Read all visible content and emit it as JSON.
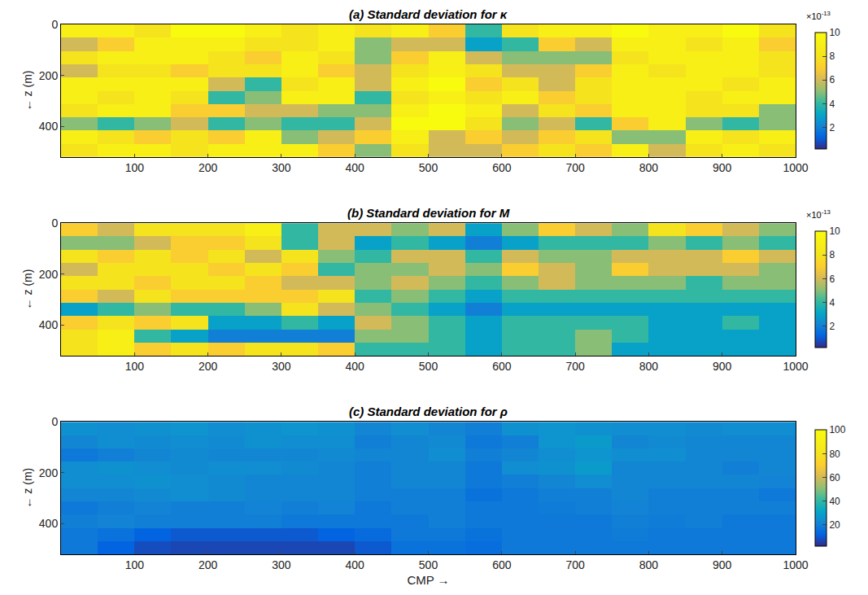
{
  "chart_data": [
    {
      "type": "heatmap",
      "title": "(a) Standard deviation for κ",
      "x": [
        25,
        75,
        125,
        175,
        225,
        275,
        325,
        375,
        425,
        475,
        525,
        575,
        625,
        675,
        725,
        775,
        825,
        875,
        925,
        975
      ],
      "y": [
        26,
        78,
        130,
        182,
        234,
        286,
        338,
        390,
        442,
        494
      ],
      "cells": [
        [
          9e-13,
          9e-13,
          8e-13,
          1e-12,
          1e-12,
          9e-13,
          8e-13,
          9e-13,
          8e-13,
          9e-13,
          7e-13,
          4e-13,
          8e-13,
          9e-13,
          9e-13,
          1e-12,
          9e-13,
          9e-13,
          1e-12,
          8e-13
        ],
        [
          6e-13,
          7e-13,
          9e-13,
          9e-13,
          9e-13,
          8e-13,
          8e-13,
          9e-13,
          5e-13,
          6e-13,
          6e-13,
          3e-13,
          4e-13,
          7e-13,
          6e-13,
          9e-13,
          9e-13,
          8e-13,
          9e-13,
          7e-13
        ],
        [
          8e-13,
          9e-13,
          9e-13,
          9e-13,
          8e-13,
          7e-13,
          9e-13,
          8e-13,
          5e-13,
          7e-13,
          9e-13,
          6e-13,
          5e-13,
          5e-13,
          5e-13,
          8e-13,
          9e-13,
          9e-13,
          9e-13,
          8e-13
        ],
        [
          6e-13,
          8e-13,
          8e-13,
          7e-13,
          8e-13,
          8e-13,
          9e-13,
          7e-13,
          6e-13,
          8e-13,
          9e-13,
          8e-13,
          6e-13,
          6e-13,
          7e-13,
          9e-13,
          8e-13,
          9e-13,
          9e-13,
          8e-13
        ],
        [
          9e-13,
          9e-13,
          9e-13,
          9e-13,
          6e-13,
          4e-13,
          8e-13,
          9e-13,
          6e-13,
          9e-13,
          1e-12,
          7e-13,
          8e-13,
          6e-13,
          8e-13,
          9e-13,
          9e-13,
          9e-13,
          8e-13,
          9e-13
        ],
        [
          9e-13,
          8e-13,
          9e-13,
          8e-13,
          4e-13,
          5e-13,
          9e-13,
          9e-13,
          4e-13,
          8e-13,
          9e-13,
          8e-13,
          9e-13,
          7e-13,
          8e-13,
          9e-13,
          9e-13,
          8e-13,
          9e-13,
          9e-13
        ],
        [
          8e-13,
          9e-13,
          9e-13,
          7e-13,
          7e-13,
          6e-13,
          6e-13,
          5e-13,
          5e-13,
          9e-13,
          1e-12,
          9e-13,
          6e-13,
          8e-13,
          7e-13,
          9e-13,
          9e-13,
          8e-13,
          8e-13,
          5e-13
        ],
        [
          5e-13,
          4e-13,
          5e-13,
          6e-13,
          4e-13,
          5e-13,
          4e-13,
          4e-13,
          6e-13,
          1e-12,
          1e-12,
          8e-13,
          5e-13,
          6e-13,
          4e-13,
          7e-13,
          9e-13,
          5e-13,
          4e-13,
          5e-13
        ],
        [
          9e-13,
          8e-13,
          7e-13,
          8e-13,
          7e-13,
          9e-13,
          5e-13,
          6e-13,
          7e-13,
          9e-13,
          6e-13,
          7e-13,
          6e-13,
          7e-13,
          8e-13,
          5e-13,
          5e-13,
          9e-13,
          8e-13,
          9e-13
        ],
        [
          8e-13,
          9e-13,
          9e-13,
          8e-13,
          9e-13,
          9e-13,
          9e-13,
          7e-13,
          5e-13,
          8e-13,
          6e-13,
          6e-13,
          7e-13,
          8e-13,
          7e-13,
          9e-13,
          6e-13,
          8e-13,
          9e-13,
          8e-13
        ]
      ],
      "xlim": [
        0,
        1000
      ],
      "xticks": [
        100,
        200,
        300,
        400,
        500,
        600,
        700,
        800,
        900,
        1000
      ],
      "ylim": [
        520,
        0
      ],
      "yticks": [
        0,
        200,
        400
      ],
      "ylabel": "← z (m)",
      "colorbar_range": [
        2e-14,
        1e-12
      ],
      "colorbar_ticks": [
        {
          "value": 2e-13,
          "label": "2"
        },
        {
          "value": 4e-13,
          "label": "4"
        },
        {
          "value": 6e-13,
          "label": "6"
        },
        {
          "value": 8e-13,
          "label": "8"
        },
        {
          "value": 1e-12,
          "label": "10"
        }
      ],
      "colorbar_multiplier": {
        "base": "×10",
        "exponent": "-13"
      }
    },
    {
      "type": "heatmap",
      "title": "(b) Standard deviation for M",
      "x": [
        25,
        75,
        125,
        175,
        225,
        275,
        325,
        375,
        425,
        475,
        525,
        575,
        625,
        675,
        725,
        775,
        825,
        875,
        925,
        975
      ],
      "y": [
        26,
        78,
        130,
        182,
        234,
        286,
        338,
        390,
        442,
        494
      ],
      "cells": [
        [
          7e-13,
          6e-13,
          8e-13,
          8e-13,
          8e-13,
          9e-13,
          4e-13,
          6e-13,
          6e-13,
          5e-13,
          6e-13,
          3e-13,
          5e-13,
          7e-13,
          6e-13,
          5e-13,
          8e-13,
          7e-13,
          6e-13,
          5e-13
        ],
        [
          5e-13,
          5e-13,
          6e-13,
          7e-13,
          7e-13,
          8e-13,
          4e-13,
          6e-13,
          3e-13,
          4e-13,
          3e-13,
          2e-13,
          3e-13,
          4e-13,
          4e-13,
          4e-13,
          5e-13,
          4e-13,
          5e-13,
          4e-13
        ],
        [
          8e-13,
          7e-13,
          8e-13,
          7e-13,
          8e-13,
          6e-13,
          8e-13,
          5e-13,
          4e-13,
          6e-13,
          6e-13,
          4e-13,
          6e-13,
          5e-13,
          5e-13,
          6e-13,
          6e-13,
          6e-13,
          7e-13,
          6e-13
        ],
        [
          6e-13,
          8e-13,
          8e-13,
          8e-13,
          7e-13,
          8e-13,
          7e-13,
          4e-13,
          5e-13,
          5e-13,
          6e-13,
          5e-13,
          7e-13,
          6e-13,
          5e-13,
          7e-13,
          6e-13,
          6e-13,
          6e-13,
          5e-13
        ],
        [
          8e-13,
          8e-13,
          7e-13,
          8e-13,
          8e-13,
          7e-13,
          6e-13,
          6e-13,
          5e-13,
          6e-13,
          5e-13,
          4e-13,
          5e-13,
          6e-13,
          5e-13,
          5e-13,
          5e-13,
          4e-13,
          5e-13,
          5e-13
        ],
        [
          7e-13,
          6e-13,
          8e-13,
          7e-13,
          7e-13,
          7e-13,
          7e-13,
          8e-13,
          4e-13,
          5e-13,
          4e-13,
          3e-13,
          4e-13,
          4e-13,
          4e-13,
          4e-13,
          4e-13,
          4e-13,
          4e-13,
          4e-13
        ],
        [
          3e-13,
          4e-13,
          5e-13,
          4e-13,
          4e-13,
          5e-13,
          8e-13,
          6e-13,
          5e-13,
          4e-13,
          3e-13,
          2e-13,
          3e-13,
          3e-13,
          3e-13,
          3e-13,
          3e-13,
          3e-13,
          3e-13,
          3e-13
        ],
        [
          7e-13,
          8e-13,
          7e-13,
          8e-13,
          3e-13,
          3e-13,
          4e-13,
          3e-13,
          6e-13,
          5e-13,
          4e-13,
          3e-13,
          4e-13,
          4e-13,
          4e-13,
          4e-13,
          3e-13,
          3e-13,
          4e-13,
          3e-13
        ],
        [
          8e-13,
          9e-13,
          4e-13,
          3e-13,
          2e-13,
          2e-13,
          2e-13,
          2e-13,
          5e-13,
          5e-13,
          4e-13,
          3e-13,
          4e-13,
          4e-13,
          5e-13,
          4e-13,
          3e-13,
          3e-13,
          3e-13,
          3e-13
        ],
        [
          8e-13,
          9e-13,
          7e-13,
          8e-13,
          7e-13,
          8e-13,
          8e-13,
          7e-13,
          4e-13,
          4e-13,
          4e-13,
          3e-13,
          4e-13,
          4e-13,
          5e-13,
          3e-13,
          3e-13,
          3e-13,
          3e-13,
          3e-13
        ]
      ],
      "xlim": [
        0,
        1000
      ],
      "xticks": [
        100,
        200,
        300,
        400,
        500,
        600,
        700,
        800,
        900,
        1000
      ],
      "ylim": [
        520,
        0
      ],
      "yticks": [
        0,
        200,
        400
      ],
      "ylabel": "← z (m)",
      "colorbar_range": [
        2e-14,
        1e-12
      ],
      "colorbar_ticks": [
        {
          "value": 2e-13,
          "label": "2"
        },
        {
          "value": 4e-13,
          "label": "4"
        },
        {
          "value": 6e-13,
          "label": "6"
        },
        {
          "value": 8e-13,
          "label": "8"
        },
        {
          "value": 1e-12,
          "label": "10"
        }
      ],
      "colorbar_multiplier": {
        "base": "×10",
        "exponent": "-13"
      }
    },
    {
      "type": "heatmap",
      "title": "(c) Standard deviation for ρ",
      "x": [
        25,
        75,
        125,
        175,
        225,
        275,
        325,
        375,
        425,
        475,
        525,
        575,
        625,
        675,
        725,
        775,
        825,
        875,
        925,
        975
      ],
      "y": [
        26,
        78,
        130,
        182,
        234,
        286,
        338,
        390,
        442,
        494
      ],
      "cells": [
        [
          25,
          24,
          25,
          26,
          24,
          25,
          26,
          25,
          22,
          24,
          22,
          20,
          25,
          26,
          25,
          24,
          24,
          23,
          24,
          24
        ],
        [
          22,
          24,
          23,
          24,
          23,
          25,
          24,
          24,
          20,
          22,
          23,
          18,
          20,
          26,
          28,
          22,
          23,
          22,
          22,
          22
        ],
        [
          18,
          20,
          22,
          23,
          22,
          22,
          22,
          23,
          22,
          22,
          24,
          20,
          22,
          24,
          26,
          24,
          24,
          22,
          22,
          22
        ],
        [
          24,
          25,
          24,
          23,
          24,
          24,
          23,
          22,
          20,
          22,
          22,
          18,
          24,
          25,
          28,
          22,
          22,
          22,
          20,
          22
        ],
        [
          24,
          24,
          25,
          24,
          23,
          22,
          22,
          22,
          20,
          22,
          22,
          18,
          20,
          22,
          24,
          22,
          22,
          22,
          22,
          21
        ],
        [
          22,
          22,
          23,
          24,
          23,
          22,
          22,
          22,
          20,
          20,
          20,
          16,
          18,
          20,
          20,
          22,
          20,
          20,
          20,
          18
        ],
        [
          18,
          20,
          21,
          20,
          20,
          21,
          20,
          21,
          18,
          20,
          20,
          18,
          18,
          19,
          20,
          21,
          20,
          20,
          20,
          20
        ],
        [
          20,
          21,
          20,
          20,
          20,
          20,
          18,
          18,
          18,
          18,
          20,
          18,
          18,
          18,
          18,
          20,
          19,
          20,
          18,
          18
        ],
        [
          18,
          16,
          12,
          10,
          10,
          10,
          10,
          12,
          14,
          18,
          18,
          16,
          18,
          18,
          18,
          19,
          18,
          18,
          18,
          18
        ],
        [
          18,
          12,
          8,
          7,
          7,
          7,
          7,
          7,
          10,
          16,
          16,
          15,
          18,
          18,
          18,
          18,
          18,
          18,
          18,
          18
        ]
      ],
      "xlim": [
        0,
        1000
      ],
      "xticks": [
        100,
        200,
        300,
        400,
        500,
        600,
        700,
        800,
        900,
        1000
      ],
      "ylim": [
        520,
        0
      ],
      "yticks": [
        0,
        200,
        400
      ],
      "ylabel": "← z (m)",
      "xlabel": "CMP →",
      "colorbar_range": [
        2,
        100
      ],
      "colorbar_ticks": [
        20,
        40,
        60,
        80,
        100
      ]
    }
  ]
}
